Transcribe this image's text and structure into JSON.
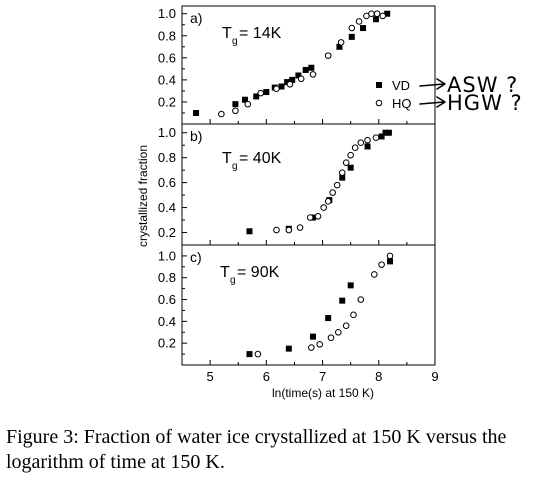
{
  "chart_data": [
    {
      "type": "scatter",
      "panel_label": "a)",
      "annotation": {
        "main": "T",
        "sub": "g",
        "rest": "= 14K"
      },
      "xlim": [
        4.5,
        9
      ],
      "ylim": [
        0,
        1.07
      ],
      "yticks": [
        0.2,
        0.4,
        0.6,
        0.8,
        1.0
      ],
      "ytick_labels": [
        "0.2",
        "0.4",
        "0.6",
        "0.8",
        "1.0"
      ],
      "legend": [
        {
          "name": "VD",
          "marker": "filled-square",
          "handwritten_note": "ASW ?"
        },
        {
          "name": "HQ",
          "marker": "open-circle",
          "handwritten_note": "HGW ?"
        }
      ],
      "series": [
        {
          "name": "VD",
          "marker": "filled-square",
          "x": [
            4.75,
            5.45,
            5.62,
            5.82,
            6.0,
            6.15,
            6.27,
            6.37,
            6.46,
            6.57,
            6.7,
            6.8,
            7.3,
            7.52,
            7.72,
            7.95,
            8.15
          ],
          "y": [
            0.1,
            0.18,
            0.22,
            0.25,
            0.29,
            0.33,
            0.34,
            0.38,
            0.4,
            0.44,
            0.49,
            0.51,
            0.7,
            0.79,
            0.87,
            0.95,
            1.0
          ]
        },
        {
          "name": "HQ",
          "marker": "open-circle",
          "x": [
            5.2,
            5.45,
            5.67,
            5.9,
            6.18,
            6.42,
            6.62,
            6.83,
            7.1,
            7.33,
            7.52,
            7.65,
            7.78,
            7.87,
            7.97,
            8.07
          ],
          "y": [
            0.09,
            0.12,
            0.18,
            0.28,
            0.32,
            0.36,
            0.41,
            0.45,
            0.62,
            0.74,
            0.87,
            0.93,
            0.98,
            1.0,
            1.0,
            0.98
          ]
        }
      ]
    },
    {
      "type": "scatter",
      "panel_label": "b)",
      "annotation": {
        "main": "T",
        "sub": "g",
        "rest": "= 40K"
      },
      "xlim": [
        4.5,
        9
      ],
      "ylim": [
        0.1,
        1.07
      ],
      "yticks": [
        0.2,
        0.4,
        0.6,
        0.8,
        1.0
      ],
      "ytick_labels": [
        "0.2",
        "0.4",
        "0.6",
        "0.8",
        "1.0"
      ],
      "series": [
        {
          "name": "VD",
          "marker": "filled-square",
          "x": [
            5.7,
            6.4,
            6.83,
            7.12,
            7.35,
            7.5,
            7.8,
            8.05,
            8.12,
            8.18
          ],
          "y": [
            0.21,
            0.23,
            0.32,
            0.46,
            0.64,
            0.72,
            0.89,
            0.97,
            1.0,
            1.0
          ]
        },
        {
          "name": "HQ",
          "marker": "open-circle",
          "x": [
            6.18,
            6.4,
            6.6,
            6.78,
            6.92,
            7.02,
            7.1,
            7.18,
            7.26,
            7.35,
            7.42,
            7.5,
            7.58,
            7.68,
            7.8,
            7.95
          ],
          "y": [
            0.22,
            0.22,
            0.24,
            0.32,
            0.33,
            0.4,
            0.45,
            0.52,
            0.58,
            0.68,
            0.76,
            0.82,
            0.88,
            0.92,
            0.94,
            0.96
          ]
        }
      ]
    },
    {
      "type": "scatter",
      "panel_label": "c)",
      "annotation": {
        "main": "T",
        "sub": "g",
        "rest": "= 90K"
      },
      "xlim": [
        4.5,
        9
      ],
      "ylim": [
        0,
        1.1
      ],
      "xticks": [
        5,
        6,
        7,
        8,
        9
      ],
      "xtick_labels": [
        "5",
        "6",
        "7",
        "8",
        "9"
      ],
      "yticks": [
        0.2,
        0.4,
        0.6,
        0.8,
        1.0
      ],
      "ytick_labels": [
        "0.2",
        "0.4",
        "0.6",
        "0.8",
        "1.0"
      ],
      "series": [
        {
          "name": "VD",
          "marker": "filled-square",
          "x": [
            5.7,
            6.4,
            6.83,
            7.1,
            7.35,
            7.5,
            8.2
          ],
          "y": [
            0.1,
            0.15,
            0.26,
            0.43,
            0.59,
            0.73,
            0.95
          ]
        },
        {
          "name": "HQ",
          "marker": "open-circle",
          "x": [
            5.85,
            6.8,
            6.95,
            7.15,
            7.28,
            7.42,
            7.55,
            7.68,
            7.92,
            8.05,
            8.2
          ],
          "y": [
            0.1,
            0.16,
            0.19,
            0.25,
            0.3,
            0.36,
            0.46,
            0.6,
            0.83,
            0.92,
            1.0
          ]
        }
      ]
    }
  ],
  "axes": {
    "xlabel": "ln(time(s) at 150 K)",
    "ylabel": "crystallized fraction"
  },
  "caption": "Figure 3: Fraction of water ice crystallized at 150 K versus the logarithm of time at 150 K."
}
